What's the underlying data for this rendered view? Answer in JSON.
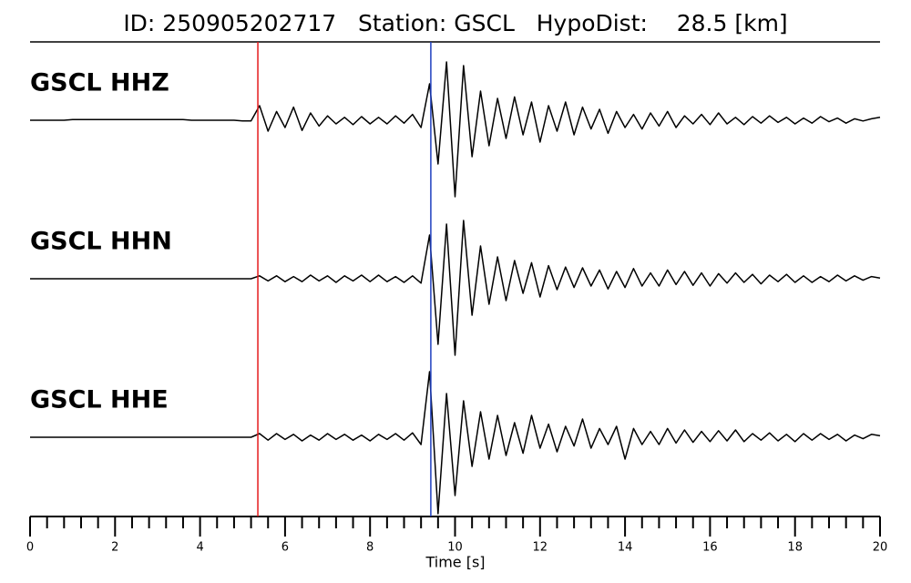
{
  "chart_data": {
    "type": "line",
    "title": "ID: 250905202717   Station: GSCL   HypoDist:    28.5 [km]",
    "xlabel": "Time [s]",
    "xlim": [
      0,
      20
    ],
    "xticks": [
      0,
      2,
      4,
      6,
      8,
      10,
      12,
      14,
      16,
      18,
      20
    ],
    "markers": [
      {
        "value": 5.36,
        "color": "#e41a1c"
      },
      {
        "value": 9.43,
        "color": "#1f3fbf"
      }
    ],
    "x": [
      0,
      0.2,
      0.4,
      0.6,
      0.8,
      1,
      1.2,
      1.4,
      1.6,
      1.8,
      2,
      2.2,
      2.4,
      2.6,
      2.8,
      3,
      3.2,
      3.4,
      3.6,
      3.8,
      4,
      4.2,
      4.4,
      4.6,
      4.8,
      5,
      5.2,
      5.4,
      5.6,
      5.8,
      6,
      6.2,
      6.4,
      6.6,
      6.8,
      7,
      7.2,
      7.4,
      7.6,
      7.8,
      8,
      8.2,
      8.4,
      8.6,
      8.8,
      9,
      9.2,
      9.4,
      9.6,
      9.8,
      10,
      10.2,
      10.4,
      10.6,
      10.8,
      11,
      11.2,
      11.4,
      11.6,
      11.8,
      12,
      12.2,
      12.4,
      12.6,
      12.8,
      13,
      13.2,
      13.4,
      13.6,
      13.8,
      14,
      14.2,
      14.4,
      14.6,
      14.8,
      15,
      15.2,
      15.4,
      15.6,
      15.8,
      16,
      16.2,
      16.4,
      16.6,
      16.8,
      17,
      17.2,
      17.4,
      17.6,
      17.8,
      18,
      18.2,
      18.4,
      18.6,
      18.8,
      19,
      19.2,
      19.4,
      19.6,
      19.8,
      20
    ],
    "series": [
      {
        "name": "GSCL HHZ",
        "color": "#000000",
        "label_color": "#4a9a00",
        "values": [
          0,
          0,
          0,
          0,
          0,
          0.01,
          0.01,
          0.01,
          0.01,
          0.01,
          0.01,
          0.01,
          0.01,
          0.01,
          0.01,
          0.01,
          0.01,
          0.01,
          0.01,
          0,
          0,
          0,
          0,
          0,
          0,
          -0.01,
          -0.01,
          0.2,
          -0.15,
          0.12,
          -0.1,
          0.18,
          -0.14,
          0.1,
          -0.08,
          0.06,
          -0.05,
          0.04,
          -0.06,
          0.05,
          -0.05,
          0.04,
          -0.05,
          0.06,
          -0.04,
          0.08,
          -0.1,
          0.5,
          -0.6,
          0.8,
          -1.05,
          0.75,
          -0.5,
          0.4,
          -0.35,
          0.3,
          -0.25,
          0.32,
          -0.2,
          0.25,
          -0.3,
          0.2,
          -0.15,
          0.25,
          -0.2,
          0.18,
          -0.12,
          0.15,
          -0.18,
          0.12,
          -0.1,
          0.08,
          -0.12,
          0.1,
          -0.08,
          0.12,
          -0.1,
          0.06,
          -0.05,
          0.08,
          -0.06,
          0.1,
          -0.05,
          0.04,
          -0.06,
          0.05,
          -0.04,
          0.06,
          -0.03,
          0.04,
          -0.05,
          0.03,
          -0.04,
          0.05,
          -0.02,
          0.03,
          -0.04,
          0.02,
          -0.01,
          0.02,
          0.04
        ]
      },
      {
        "name": "GSCL HHN",
        "color": "#000000",
        "label_color": "#4a9a00",
        "values": [
          0,
          0,
          0,
          0,
          0,
          0,
          0,
          0,
          0,
          0,
          0,
          0,
          0,
          0,
          0,
          0,
          0,
          0,
          0,
          0,
          0,
          0,
          0,
          0,
          0,
          0,
          0,
          0.04,
          -0.03,
          0.04,
          -0.04,
          0.03,
          -0.04,
          0.05,
          -0.03,
          0.04,
          -0.05,
          0.04,
          -0.03,
          0.05,
          -0.04,
          0.05,
          -0.04,
          0.03,
          -0.05,
          0.04,
          -0.06,
          0.6,
          -0.9,
          0.75,
          -1.05,
          0.8,
          -0.5,
          0.45,
          -0.35,
          0.3,
          -0.3,
          0.25,
          -0.2,
          0.22,
          -0.25,
          0.18,
          -0.15,
          0.16,
          -0.12,
          0.15,
          -0.1,
          0.12,
          -0.14,
          0.1,
          -0.12,
          0.14,
          -0.1,
          0.08,
          -0.1,
          0.12,
          -0.08,
          0.1,
          -0.09,
          0.08,
          -0.1,
          0.07,
          -0.06,
          0.08,
          -0.05,
          0.06,
          -0.07,
          0.05,
          -0.04,
          0.06,
          -0.05,
          0.04,
          -0.05,
          0.03,
          -0.04,
          0.05,
          -0.03,
          0.04,
          -0.02,
          0.03,
          0.01
        ]
      },
      {
        "name": "GSCL HHE",
        "color": "#000000",
        "label_color": "#4a9a00",
        "values": [
          0,
          0,
          0,
          0,
          0,
          0,
          0,
          0,
          0,
          0,
          0,
          0,
          0,
          0,
          0,
          0,
          0,
          0,
          0,
          0,
          0,
          0,
          0,
          0,
          0,
          0,
          0,
          0.05,
          -0.04,
          0.05,
          -0.03,
          0.04,
          -0.05,
          0.03,
          -0.04,
          0.05,
          -0.03,
          0.04,
          -0.04,
          0.03,
          -0.05,
          0.04,
          -0.03,
          0.05,
          -0.04,
          0.06,
          -0.1,
          0.9,
          -1.05,
          0.6,
          -0.8,
          0.5,
          -0.4,
          0.35,
          -0.3,
          0.3,
          -0.25,
          0.2,
          -0.22,
          0.3,
          -0.15,
          0.18,
          -0.2,
          0.15,
          -0.12,
          0.25,
          -0.15,
          0.12,
          -0.1,
          0.15,
          -0.3,
          0.12,
          -0.1,
          0.08,
          -0.1,
          0.12,
          -0.08,
          0.1,
          -0.07,
          0.08,
          -0.06,
          0.09,
          -0.05,
          0.1,
          -0.06,
          0.05,
          -0.04,
          0.06,
          -0.05,
          0.04,
          -0.06,
          0.05,
          -0.04,
          0.05,
          -0.03,
          0.04,
          -0.05,
          0.03,
          -0.02,
          0.04,
          0.02
        ]
      }
    ]
  }
}
